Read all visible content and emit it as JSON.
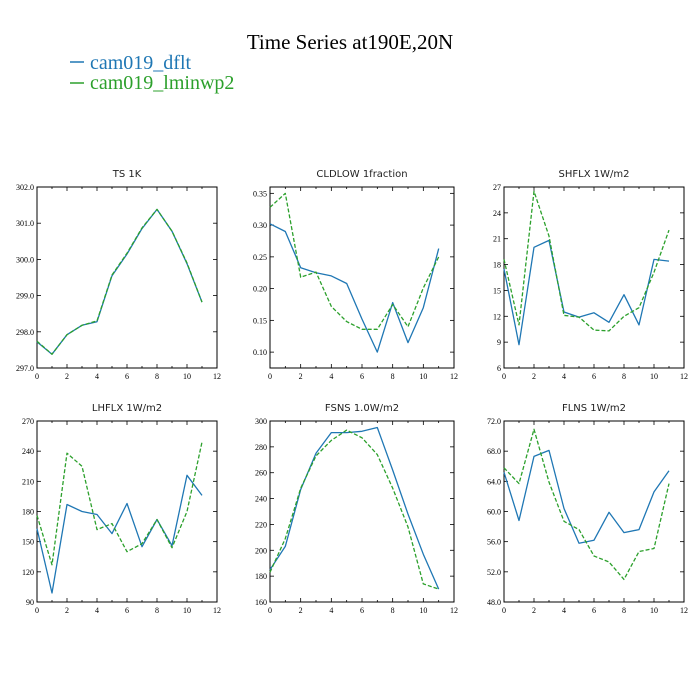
{
  "figure": {
    "title": "Time Series at190E,20N",
    "colors": {
      "dflt": "#1f77b4",
      "lminwp2": "#2ca02c"
    },
    "legend": [
      {
        "label": "cam019_dflt",
        "color": "#1f77b4",
        "dashed": false
      },
      {
        "label": "cam019_lminwp2",
        "color": "#2ca02c",
        "dashed": true
      }
    ]
  },
  "chart_data": [
    {
      "type": "line",
      "title": "TS   1K",
      "x": [
        0,
        1,
        2,
        3,
        4,
        5,
        6,
        7,
        8,
        9,
        10,
        11
      ],
      "xlim": [
        0,
        12
      ],
      "xticks": [
        0,
        2,
        4,
        6,
        8,
        10,
        12
      ],
      "xtick_labels": [
        "0",
        "2",
        "4",
        "6",
        "8",
        "10",
        "12"
      ],
      "ylim": [
        297.0,
        302.0
      ],
      "yticks": [
        297.0,
        298.0,
        299.0,
        300.0,
        301.0,
        302.0
      ],
      "ytick_labels": [
        "297.0",
        "298.0",
        "299.0",
        "300.0",
        "301.0",
        "302.0"
      ],
      "series": [
        {
          "name": "cam019_dflt",
          "values": [
            297.72,
            297.38,
            297.92,
            298.18,
            298.28,
            299.55,
            300.15,
            300.85,
            301.38,
            300.78,
            299.88,
            298.82
          ]
        },
        {
          "name": "cam019_lminwp2",
          "values": [
            297.74,
            297.38,
            297.92,
            298.18,
            298.3,
            299.57,
            300.17,
            300.87,
            301.38,
            300.78,
            299.9,
            298.82
          ]
        }
      ]
    },
    {
      "type": "line",
      "title": "CLDLOW   1fraction",
      "x": [
        0,
        1,
        2,
        3,
        4,
        5,
        6,
        7,
        8,
        9,
        10,
        11
      ],
      "xlim": [
        0,
        12
      ],
      "xticks": [
        0,
        2,
        4,
        6,
        8,
        10,
        12
      ],
      "xtick_labels": [
        "0",
        "2",
        "4",
        "6",
        "8",
        "10",
        "12"
      ],
      "ylim": [
        0.075,
        0.36
      ],
      "yticks": [
        0.1,
        0.15,
        0.2,
        0.25,
        0.3,
        0.35
      ],
      "ytick_labels": [
        "0.10",
        "0.15",
        "0.20",
        "0.25",
        "0.30",
        "0.35"
      ],
      "series": [
        {
          "name": "cam019_dflt",
          "values": [
            0.302,
            0.29,
            0.233,
            0.225,
            0.22,
            0.208,
            0.152,
            0.1,
            0.178,
            0.115,
            0.17,
            0.263
          ]
        },
        {
          "name": "cam019_lminwp2",
          "values": [
            0.328,
            0.35,
            0.218,
            0.226,
            0.172,
            0.148,
            0.136,
            0.136,
            0.175,
            0.14,
            0.201,
            0.25
          ]
        }
      ]
    },
    {
      "type": "line",
      "title": "SHFLX   1W/m2",
      "x": [
        0,
        1,
        2,
        3,
        4,
        5,
        6,
        7,
        8,
        9,
        10,
        11
      ],
      "xlim": [
        0,
        12
      ],
      "xticks": [
        0,
        2,
        4,
        6,
        8,
        10,
        12
      ],
      "xtick_labels": [
        "0",
        "2",
        "4",
        "6",
        "8",
        "10",
        "12"
      ],
      "ylim": [
        6,
        27
      ],
      "yticks": [
        6,
        9,
        12,
        15,
        18,
        21,
        24,
        27
      ],
      "ytick_labels": [
        "6",
        "9",
        "12",
        "15",
        "18",
        "21",
        "24",
        "27"
      ],
      "series": [
        {
          "name": "cam019_dflt",
          "values": [
            17.5,
            8.7,
            20.0,
            20.8,
            12.5,
            11.9,
            12.4,
            11.3,
            14.5,
            11.0,
            18.6,
            18.4
          ]
        },
        {
          "name": "cam019_lminwp2",
          "values": [
            18.6,
            11.0,
            26.5,
            21.3,
            12.1,
            11.9,
            10.4,
            10.3,
            12.0,
            13.0,
            17.1,
            22.0
          ]
        }
      ]
    },
    {
      "type": "line",
      "title": "LHFLX   1W/m2",
      "x": [
        0,
        1,
        2,
        3,
        4,
        5,
        6,
        7,
        8,
        9,
        10,
        11
      ],
      "xlim": [
        0,
        12
      ],
      "xticks": [
        0,
        2,
        4,
        6,
        8,
        10,
        12
      ],
      "xtick_labels": [
        "0",
        "2",
        "4",
        "6",
        "8",
        "10",
        "12"
      ],
      "ylim": [
        90,
        270
      ],
      "yticks": [
        90,
        120,
        150,
        180,
        210,
        240,
        270
      ],
      "ytick_labels": [
        "90",
        "120",
        "150",
        "180",
        "210",
        "240",
        "270"
      ],
      "series": [
        {
          "name": "cam019_dflt",
          "values": [
            163,
            99,
            187,
            180,
            177,
            158,
            188,
            145,
            172,
            146,
            216,
            196
          ]
        },
        {
          "name": "cam019_lminwp2",
          "values": [
            176,
            127,
            238,
            225,
            162,
            168,
            140,
            148,
            172,
            144,
            180,
            249
          ]
        }
      ]
    },
    {
      "type": "line",
      "title": "FSNS   1.0W/m2",
      "x": [
        0,
        1,
        2,
        3,
        4,
        5,
        6,
        7,
        8,
        9,
        10,
        11
      ],
      "xlim": [
        0,
        12
      ],
      "xticks": [
        0,
        2,
        4,
        6,
        8,
        10,
        12
      ],
      "xtick_labels": [
        "0",
        "2",
        "4",
        "6",
        "8",
        "10",
        "12"
      ],
      "ylim": [
        160,
        300
      ],
      "yticks": [
        160,
        180,
        200,
        220,
        240,
        260,
        280,
        300
      ],
      "ytick_labels": [
        "160",
        "180",
        "200",
        "220",
        "240",
        "260",
        "280",
        "300"
      ],
      "series": [
        {
          "name": "cam019_dflt",
          "values": [
            185,
            203,
            247,
            275,
            291,
            291,
            292,
            295,
            262,
            228,
            197,
            170
          ]
        },
        {
          "name": "cam019_lminwp2",
          "values": [
            183,
            209,
            248,
            273,
            285,
            293,
            287,
            274,
            248,
            218,
            174,
            170
          ]
        }
      ]
    },
    {
      "type": "line",
      "title": "FLNS   1W/m2",
      "x": [
        0,
        1,
        2,
        3,
        4,
        5,
        6,
        7,
        8,
        9,
        10,
        11
      ],
      "xlim": [
        0,
        12
      ],
      "xticks": [
        0,
        2,
        4,
        6,
        8,
        10,
        12
      ],
      "xtick_labels": [
        "0",
        "2",
        "4",
        "6",
        "8",
        "10",
        "12"
      ],
      "ylim": [
        48,
        72
      ],
      "yticks": [
        48,
        52,
        56,
        60,
        64,
        68,
        72
      ],
      "ytick_labels": [
        "48.0",
        "52.0",
        "56.0",
        "60.0",
        "64.0",
        "68.0",
        "72.0"
      ],
      "series": [
        {
          "name": "cam019_dflt",
          "values": [
            65.2,
            58.8,
            67.3,
            68.1,
            60.4,
            55.8,
            56.2,
            59.9,
            57.2,
            57.6,
            62.6,
            65.4
          ]
        },
        {
          "name": "cam019_lminwp2",
          "values": [
            65.8,
            63.7,
            70.9,
            63.9,
            58.7,
            57.6,
            54.1,
            53.3,
            51.0,
            54.7,
            55.1,
            63.7
          ]
        }
      ]
    }
  ]
}
